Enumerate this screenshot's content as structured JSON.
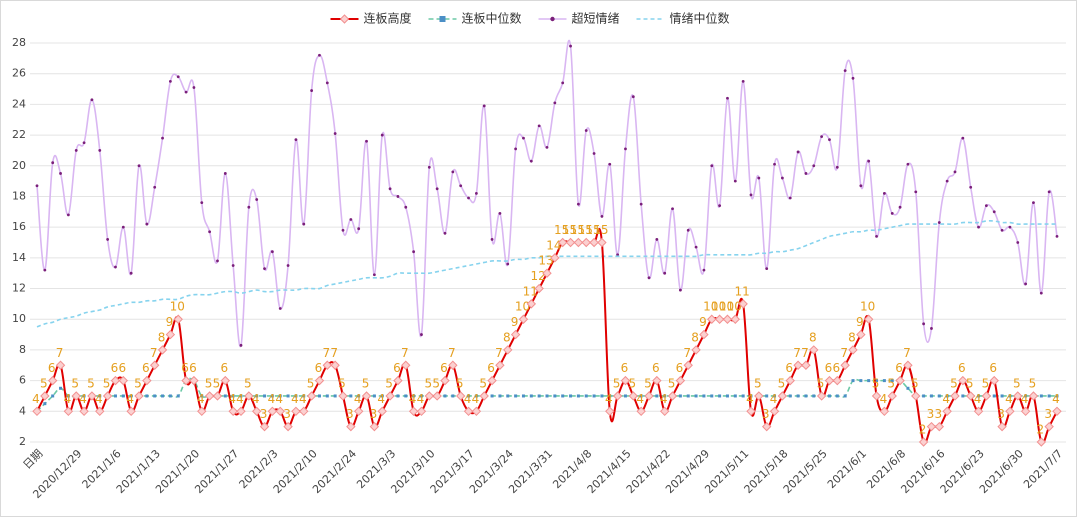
{
  "chart_data": {
    "type": "line",
    "categories": [
      "日期",
      null,
      null,
      null,
      null,
      "2020/12/29",
      null,
      null,
      null,
      null,
      "2021/1/6",
      null,
      null,
      null,
      null,
      "2021/1/13",
      null,
      null,
      null,
      null,
      "2021/1/20",
      null,
      null,
      null,
      null,
      "2021/1/27",
      null,
      null,
      null,
      null,
      "2021/2/3",
      null,
      null,
      null,
      null,
      "2021/2/10",
      null,
      null,
      null,
      null,
      "2021/2/24",
      null,
      null,
      null,
      null,
      "2021/3/3",
      null,
      null,
      null,
      null,
      "2021/3/10",
      null,
      null,
      null,
      null,
      "2021/3/17",
      null,
      null,
      null,
      null,
      "2021/3/24",
      null,
      null,
      null,
      null,
      "2021/3/31",
      null,
      null,
      null,
      null,
      "2021/4/8",
      null,
      null,
      null,
      null,
      "2021/4/15",
      null,
      null,
      null,
      null,
      "2021/4/22",
      null,
      null,
      null,
      null,
      "2021/4/29",
      null,
      null,
      null,
      null,
      "2021/5/11",
      null,
      null,
      null,
      null,
      "2021/5/18",
      null,
      null,
      null,
      null,
      "2021/5/25",
      null,
      null,
      null,
      null,
      "2021/6/1",
      null,
      null,
      null,
      null,
      "2021/6/8",
      null,
      null,
      null,
      null,
      "2021/6/16",
      null,
      null,
      null,
      null,
      "2021/6/23",
      null,
      null,
      null,
      null,
      "2021/6/30",
      null,
      null,
      null,
      null,
      "2021/7/7"
    ],
    "series": [
      {
        "name": "连板高度",
        "color": "#e00000",
        "data_labels": true,
        "values": [
          4,
          5,
          6,
          7,
          4,
          5,
          4,
          5,
          4,
          5,
          6,
          6,
          4,
          5,
          6,
          7,
          8,
          9,
          10,
          6,
          6,
          4,
          5,
          5,
          6,
          4,
          4,
          5,
          4,
          3,
          4,
          4,
          3,
          4,
          4,
          5,
          6,
          7,
          7,
          5,
          3,
          4,
          5,
          3,
          4,
          5,
          6,
          7,
          4,
          4,
          5,
          5,
          6,
          7,
          5,
          4,
          4,
          5,
          6,
          7,
          8,
          9,
          10,
          11,
          12,
          13,
          14,
          15,
          15,
          15,
          15,
          15,
          15,
          4,
          5,
          6,
          5,
          4,
          5,
          6,
          4,
          5,
          6,
          7,
          8,
          9,
          10,
          10,
          10,
          10,
          11,
          4,
          5,
          3,
          4,
          5,
          6,
          7,
          7,
          8,
          5,
          6,
          6,
          7,
          8,
          9,
          10,
          5,
          4,
          5,
          6,
          7,
          5,
          2,
          3,
          3,
          4,
          5,
          6,
          5,
          4,
          5,
          6,
          3,
          4,
          5,
          4,
          5,
          2,
          3,
          4
        ]
      },
      {
        "name": "连板中位数",
        "color": "#6cc9a6",
        "values": [
          4,
          4.5,
          5,
          5.5,
          5,
          5,
          5,
          5,
          5,
          5,
          5,
          5,
          5,
          5,
          5,
          5,
          5,
          5,
          5,
          6,
          6,
          5,
          5,
          5,
          5,
          5,
          5,
          5,
          5,
          5,
          5,
          5,
          5,
          5,
          5,
          5,
          5,
          5,
          5,
          5,
          5,
          5,
          5,
          5,
          5,
          5,
          5,
          5,
          5,
          5,
          5,
          5,
          5,
          5,
          5,
          5,
          5,
          5,
          5,
          5,
          5,
          5,
          5,
          5,
          5,
          5,
          5,
          5,
          5,
          5,
          5,
          5,
          5,
          5,
          5,
          5,
          5,
          5,
          5,
          5,
          5,
          5,
          5,
          5,
          5,
          5,
          5,
          5,
          5,
          5,
          5,
          5,
          5,
          5,
          5,
          5,
          5,
          5,
          5,
          5,
          5,
          5,
          5,
          5,
          6,
          6,
          6,
          6,
          6,
          6,
          6,
          5.5,
          5,
          5,
          5,
          5,
          5,
          5,
          5,
          5,
          5,
          5,
          5,
          5,
          5,
          5,
          5,
          5,
          5,
          5,
          5
        ]
      },
      {
        "name": "超短情绪",
        "color": "#d9b6f2",
        "values": [
          18.7,
          13.2,
          20.2,
          19.5,
          16.8,
          21,
          21.5,
          24.3,
          21,
          15.2,
          13.4,
          16,
          13,
          20,
          16.2,
          18.6,
          21.8,
          25.5,
          25.8,
          24.8,
          25.1,
          17.6,
          15.7,
          13.8,
          19.5,
          13.5,
          8.3,
          17.3,
          17.8,
          13.3,
          14.4,
          10.7,
          13.5,
          21.7,
          16.2,
          24.9,
          27.2,
          25.4,
          22.1,
          15.8,
          16.5,
          15.9,
          21.6,
          12.9,
          22,
          18.5,
          18,
          17.3,
          14.4,
          9,
          19.9,
          18.5,
          15.6,
          19.6,
          18.7,
          17.9,
          18.2,
          23.9,
          15.2,
          16.9,
          13.6,
          21.1,
          21.8,
          20.3,
          22.6,
          21.2,
          24.1,
          25.4,
          27.8,
          17.5,
          22.3,
          20.8,
          16.7,
          20.1,
          14.2,
          21.1,
          24.5,
          17.5,
          12.7,
          15.2,
          13,
          17.2,
          11.9,
          15.8,
          14.7,
          13.2,
          20,
          17.4,
          24.4,
          19,
          25.5,
          18.1,
          19.2,
          13.3,
          20.1,
          19.2,
          17.9,
          20.9,
          19.5,
          20,
          21.9,
          21.7,
          19.9,
          26.2,
          25.7,
          18.7,
          20.3,
          15.4,
          18.2,
          16.9,
          17.3,
          20.1,
          18.3,
          9.7,
          9.4,
          16.3,
          19,
          19.6,
          21.8,
          18.6,
          16,
          17.4,
          17,
          15.8,
          16,
          15,
          12.3,
          17.6,
          11.7,
          18.3,
          15.4
        ]
      },
      {
        "name": "情绪中位数",
        "color": "#86d3ee",
        "values": [
          9.5,
          9.7,
          9.8,
          10,
          10.1,
          10.2,
          10.4,
          10.5,
          10.6,
          10.8,
          10.9,
          11,
          11.1,
          11.1,
          11.2,
          11.2,
          11.3,
          11.3,
          11.3,
          11.5,
          11.6,
          11.6,
          11.6,
          11.7,
          11.8,
          11.8,
          11.7,
          11.8,
          11.9,
          11.8,
          11.8,
          11.9,
          11.9,
          11.9,
          12,
          12,
          12,
          12.2,
          12.3,
          12.4,
          12.5,
          12.6,
          12.7,
          12.7,
          12.7,
          12.8,
          13,
          13,
          13,
          13,
          13,
          13.1,
          13.2,
          13.3,
          13.4,
          13.5,
          13.6,
          13.7,
          13.8,
          13.8,
          13.8,
          13.9,
          13.9,
          14,
          14,
          14.1,
          14.1,
          14.1,
          14.1,
          14.1,
          14.1,
          14.1,
          14.1,
          14.1,
          14.1,
          14.1,
          14.1,
          14.1,
          14.1,
          14.1,
          14.1,
          14.1,
          14.1,
          14.1,
          14.1,
          14.2,
          14.2,
          14.2,
          14.2,
          14.2,
          14.2,
          14.2,
          14.3,
          14.3,
          14.4,
          14.4,
          14.5,
          14.6,
          14.8,
          15,
          15.2,
          15.4,
          15.5,
          15.6,
          15.7,
          15.7,
          15.8,
          15.8,
          15.9,
          16,
          16.1,
          16.2,
          16.2,
          16.2,
          16.2,
          16.2,
          16.2,
          16.2,
          16.3,
          16.3,
          16.3,
          16.4,
          16.4,
          16.3,
          16.3,
          16.2,
          16.2,
          16.2,
          16.2,
          16.2,
          16.2
        ]
      }
    ],
    "ylim": [
      2,
      28
    ],
    "yticks": [
      2,
      4,
      6,
      8,
      10,
      12,
      14,
      16,
      18,
      20,
      22,
      24,
      26,
      28
    ],
    "grid": true,
    "legend": "top"
  }
}
